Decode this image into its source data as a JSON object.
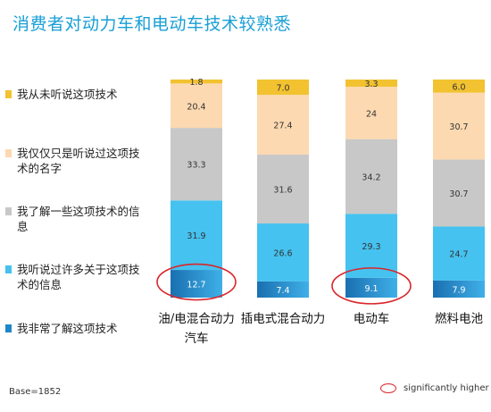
{
  "title": "消费者对动力车和电动车技术较熟悉",
  "legend": [
    {
      "label": "我从未听说这项技术",
      "color": "#f2c230"
    },
    {
      "label": "我仅仅只是听说过这项技术的名字",
      "color": "#fcd9b0"
    },
    {
      "label": "我了解一些这项技术的信息",
      "color": "#c8c8c8"
    },
    {
      "label": "我听说过许多关于这项技术的信息",
      "color": "#45c2ef"
    },
    {
      "label": "我非常了解这项技术",
      "color": "#1e88c7"
    }
  ],
  "chart_data": {
    "type": "bar",
    "stacked": true,
    "categories": [
      "油/电混合动力汽车",
      "插电式混合动力",
      "电动车",
      "燃料电池"
    ],
    "series": [
      {
        "name": "我非常了解这项技术",
        "values": [
          12.7,
          7.4,
          9.1,
          7.9
        ],
        "color": "#1e88c7"
      },
      {
        "name": "我听说过许多关于这项技术的信息",
        "values": [
          31.9,
          26.6,
          29.3,
          24.7
        ],
        "color": "#45c2ef"
      },
      {
        "name": "我了解一些这项技术的信息",
        "values": [
          33.3,
          31.6,
          34.2,
          30.7
        ],
        "color": "#c8c8c8"
      },
      {
        "name": "我仅仅只是听说过这项技术的名字",
        "values": [
          20.4,
          27.4,
          24,
          30.7
        ],
        "color": "#fcd9b0"
      },
      {
        "name": "我从未听说这项技术",
        "values": [
          1.8,
          7.0,
          3.3,
          6.0
        ],
        "color": "#f2c230"
      }
    ],
    "value_labels": [
      [
        "12.7",
        "31.9",
        "33.3",
        "20.4",
        "1.8"
      ],
      [
        "7.4",
        "26.6",
        "31.6",
        "27.4",
        "7.0"
      ],
      [
        "9.1",
        "29.3",
        "34.2",
        "24",
        "3.3"
      ],
      [
        "7.9",
        "24.7",
        "30.7",
        "30.7",
        "6.0"
      ]
    ],
    "significantly_higher": [
      [
        0,
        0
      ],
      [
        2,
        0
      ]
    ],
    "ylim": [
      0,
      100
    ]
  },
  "footer": {
    "base": "Base=1852",
    "significance_label": "significantly higher"
  }
}
